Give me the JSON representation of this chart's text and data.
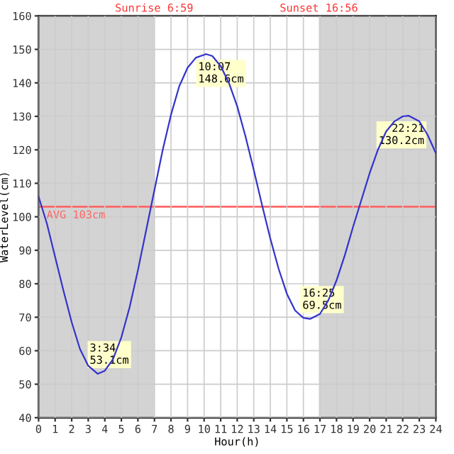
{
  "chart_data": {
    "type": "line",
    "xlabel": "Hour(h)",
    "ylabel": "WaterLevel(cm)",
    "xlim": [
      0,
      24
    ],
    "xticks": [
      0,
      1,
      2,
      3,
      4,
      5,
      6,
      7,
      8,
      9,
      10,
      11,
      12,
      13,
      14,
      15,
      16,
      17,
      18,
      19,
      20,
      21,
      22,
      23,
      24
    ],
    "ylim": [
      40,
      160
    ],
    "yticks": [
      40,
      50,
      60,
      70,
      80,
      90,
      100,
      110,
      120,
      130,
      140,
      150,
      160
    ],
    "grid": true,
    "marker": "none",
    "line_style": "solid",
    "series": [
      {
        "color": "#3333cc",
        "x": [
          0,
          0.5,
          1,
          1.5,
          2,
          2.5,
          3,
          3.567,
          4,
          4.5,
          5,
          5.5,
          6,
          6.5,
          7,
          7.5,
          8,
          8.5,
          9,
          9.5,
          10.117,
          10.5,
          11,
          11.5,
          12,
          12.5,
          13,
          13.5,
          14,
          14.5,
          15,
          15.5,
          16,
          16.417,
          17,
          17.5,
          18,
          18.5,
          19,
          19.5,
          20,
          20.5,
          21,
          21.5,
          22,
          22.35,
          23,
          23.5,
          24
        ],
        "values": [
          106,
          98,
          88,
          78,
          68.5,
          60.5,
          55.5,
          53.1,
          54,
          57.5,
          64,
          73,
          84,
          96,
          108,
          120,
          130.5,
          139,
          144.5,
          147.5,
          148.6,
          148,
          145,
          140,
          133,
          124,
          114,
          103.5,
          93.5,
          84.5,
          77,
          72,
          69.8,
          69.5,
          71,
          75,
          81,
          88.5,
          97,
          105,
          113,
          120,
          125.5,
          128.5,
          130,
          130.2,
          128.5,
          124.5,
          119
        ]
      }
    ],
    "ref_lines": [
      {
        "axis": "y",
        "value": 103,
        "label": "AVG 103cm",
        "color": "#ff6666"
      }
    ],
    "bands": [
      {
        "axis": "x",
        "from": 0,
        "to": 6.983,
        "label": "Sunrise 6:59",
        "color": "#d3d3d3"
      },
      {
        "axis": "x",
        "from": 16.933,
        "to": 24,
        "label": "Sunset 16:56",
        "color": "#d3d3d3"
      }
    ],
    "annotations": [
      {
        "text": "3:34\n53.1cm",
        "x": 3.567,
        "y": 53.1
      },
      {
        "text": "10:07\n148.6cm",
        "x": 10.117,
        "y": 148.6
      },
      {
        "text": "16:25\n69.5cm",
        "x": 16.417,
        "y": 69.5
      },
      {
        "text": "22:21\n130.2cm",
        "x": 22.35,
        "y": 130.2
      }
    ]
  }
}
